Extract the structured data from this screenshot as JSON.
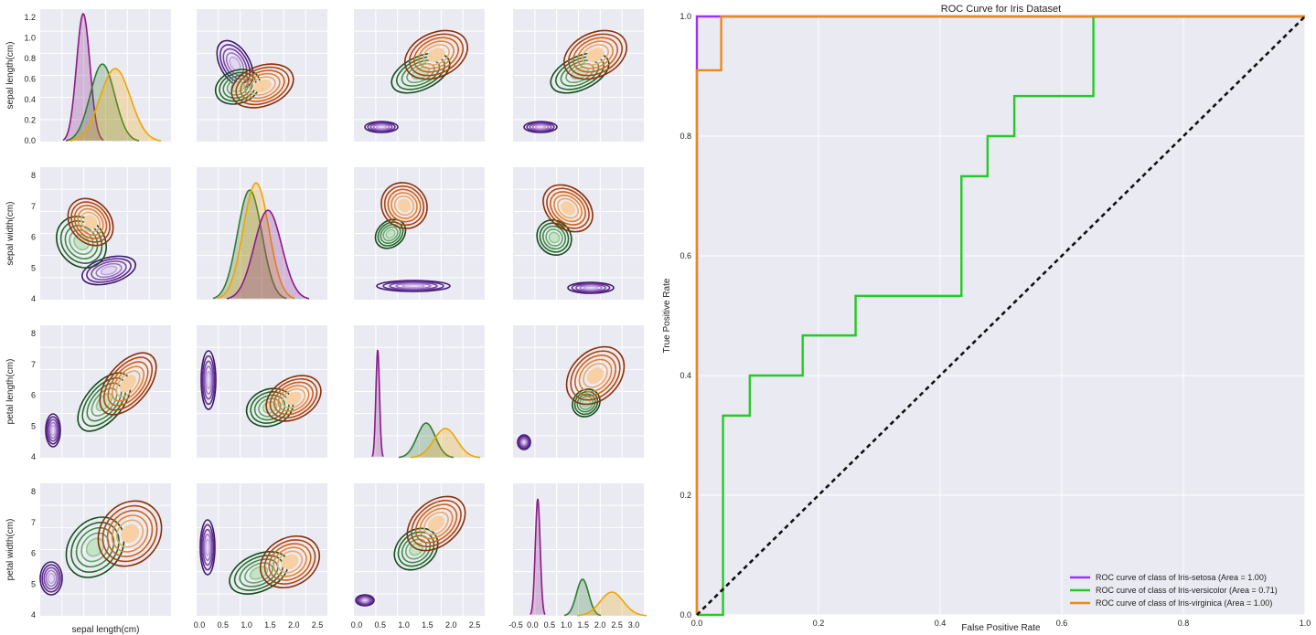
{
  "chart_data": [
    {
      "type": "pairplot-kde",
      "variables": [
        "sepal length(cm)",
        "sepal width(cm)",
        "petal length(cm)",
        "petal width(cm)"
      ],
      "row_labels": [
        "sepal length(cm)",
        "sepal width(cm)",
        "petal length(cm)",
        "petal width(cm)"
      ],
      "bottom_xlabel": "sepal length(cm)",
      "classes": [
        {
          "name": "Iris-setosa",
          "color": "#6a2c91"
        },
        {
          "name": "Iris-versicolor",
          "color": "#2e7d32"
        },
        {
          "name": "Iris-virginica",
          "color": "#e36414"
        }
      ],
      "row_ticks": [
        [
          "0.0",
          "0.2",
          "0.4",
          "0.6",
          "0.8",
          "1.0",
          "1.2"
        ],
        [
          "4",
          "5",
          "6",
          "7",
          "8"
        ],
        [
          "4",
          "5",
          "6",
          "7",
          "8"
        ],
        [
          "4",
          "5",
          "6",
          "7",
          "8"
        ]
      ],
      "bottom_xticks": [
        [],
        [
          "0.0",
          "0.5",
          "1.0",
          "1.5",
          "2.0",
          "2.5"
        ],
        [
          "0.0",
          "0.5",
          "1.0",
          "1.5",
          "2.0",
          "2.5"
        ],
        [
          "-0.5",
          "0.0",
          "0.5",
          "1.0",
          "1.5",
          "2.0",
          "2.5",
          "3.0"
        ]
      ],
      "grid": true
    },
    {
      "type": "line",
      "title": "ROC Curve for Iris Dataset",
      "xlabel": "False Positive Rate",
      "ylabel": "True Positive Rate",
      "xlim": [
        0,
        1
      ],
      "ylim": [
        0,
        1
      ],
      "xticks": [
        "0.0",
        "0.2",
        "0.4",
        "0.6",
        "0.8",
        "1.0"
      ],
      "yticks": [
        "0.0",
        "0.2",
        "0.4",
        "0.6",
        "0.8",
        "1.0"
      ],
      "grid": true,
      "legend_position": "bottom-right",
      "series": [
        {
          "name": "ROC curve of class of Iris-setosa (Area = 1.00)",
          "color": "#9b30ff",
          "x": [
            0,
            0,
            0,
            0.03,
            0.03,
            1.0
          ],
          "y": [
            0,
            0.08,
            1.0,
            1.0,
            1.0,
            1.0
          ]
        },
        {
          "name": "ROC curve of class of Iris-versicolor (Area = 0.71)",
          "color": "#22cc22",
          "x": [
            0,
            0.043,
            0.043,
            0.087,
            0.087,
            0.174,
            0.174,
            0.261,
            0.261,
            0.435,
            0.435,
            0.478,
            0.478,
            0.522,
            0.522,
            0.652,
            0.652,
            1.0
          ],
          "y": [
            0,
            0,
            0.333,
            0.333,
            0.4,
            0.4,
            0.467,
            0.467,
            0.533,
            0.533,
            0.733,
            0.733,
            0.8,
            0.8,
            0.867,
            0.867,
            1.0,
            1.0
          ]
        },
        {
          "name": "ROC curve of class of Iris-virginica (Area = 1.00)",
          "color": "#e8891c",
          "x": [
            0,
            0,
            0.04,
            0.04,
            1.0
          ],
          "y": [
            0,
            0.91,
            0.91,
            1.0,
            1.0
          ]
        },
        {
          "name": "",
          "color": "#111111",
          "dashed": true,
          "x": [
            0,
            1
          ],
          "y": [
            0,
            1
          ]
        }
      ]
    }
  ]
}
